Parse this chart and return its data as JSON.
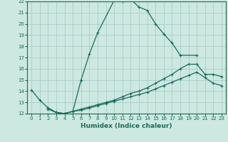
{
  "xlabel": "Humidex (Indice chaleur)",
  "ylabel": "",
  "bg_color": "#cce8e0",
  "grid_color": "#aacccc",
  "line_color": "#1a6b5a",
  "xlim": [
    -0.5,
    23.5
  ],
  "ylim": [
    12,
    22
  ],
  "xticks": [
    0,
    1,
    2,
    3,
    4,
    5,
    6,
    7,
    8,
    9,
    10,
    11,
    12,
    13,
    14,
    15,
    16,
    17,
    18,
    19,
    20,
    21,
    22,
    23
  ],
  "yticks": [
    12,
    13,
    14,
    15,
    16,
    17,
    18,
    19,
    20,
    21,
    22
  ],
  "line1_x": [
    0,
    1,
    2,
    3,
    4,
    5,
    6,
    7,
    8,
    10,
    11,
    12,
    13,
    14,
    15,
    16,
    17,
    18,
    20
  ],
  "line1_y": [
    14.1,
    13.2,
    12.5,
    12.1,
    12.0,
    12.2,
    15.0,
    17.3,
    19.2,
    22.1,
    22.0,
    22.2,
    21.5,
    21.2,
    20.0,
    19.1,
    18.3,
    17.2,
    17.2
  ],
  "line2_x": [
    2,
    3,
    4,
    5,
    6,
    7,
    8,
    9,
    10,
    11,
    12,
    13,
    14,
    15,
    16,
    17,
    18,
    19,
    20,
    21,
    22,
    23
  ],
  "line2_y": [
    12.5,
    12.1,
    12.0,
    12.2,
    12.4,
    12.6,
    12.8,
    13.0,
    13.2,
    13.5,
    13.8,
    14.0,
    14.3,
    14.7,
    15.1,
    15.5,
    16.0,
    16.4,
    16.4,
    15.5,
    15.5,
    15.3
  ],
  "line3_x": [
    2,
    3,
    4,
    5,
    6,
    7,
    8,
    9,
    10,
    11,
    12,
    13,
    14,
    15,
    16,
    17,
    18,
    19,
    20,
    21,
    22,
    23
  ],
  "line3_y": [
    12.4,
    12.1,
    12.0,
    12.2,
    12.3,
    12.5,
    12.7,
    12.9,
    13.1,
    13.3,
    13.5,
    13.7,
    13.9,
    14.2,
    14.5,
    14.8,
    15.1,
    15.4,
    15.7,
    15.2,
    14.7,
    14.5
  ]
}
